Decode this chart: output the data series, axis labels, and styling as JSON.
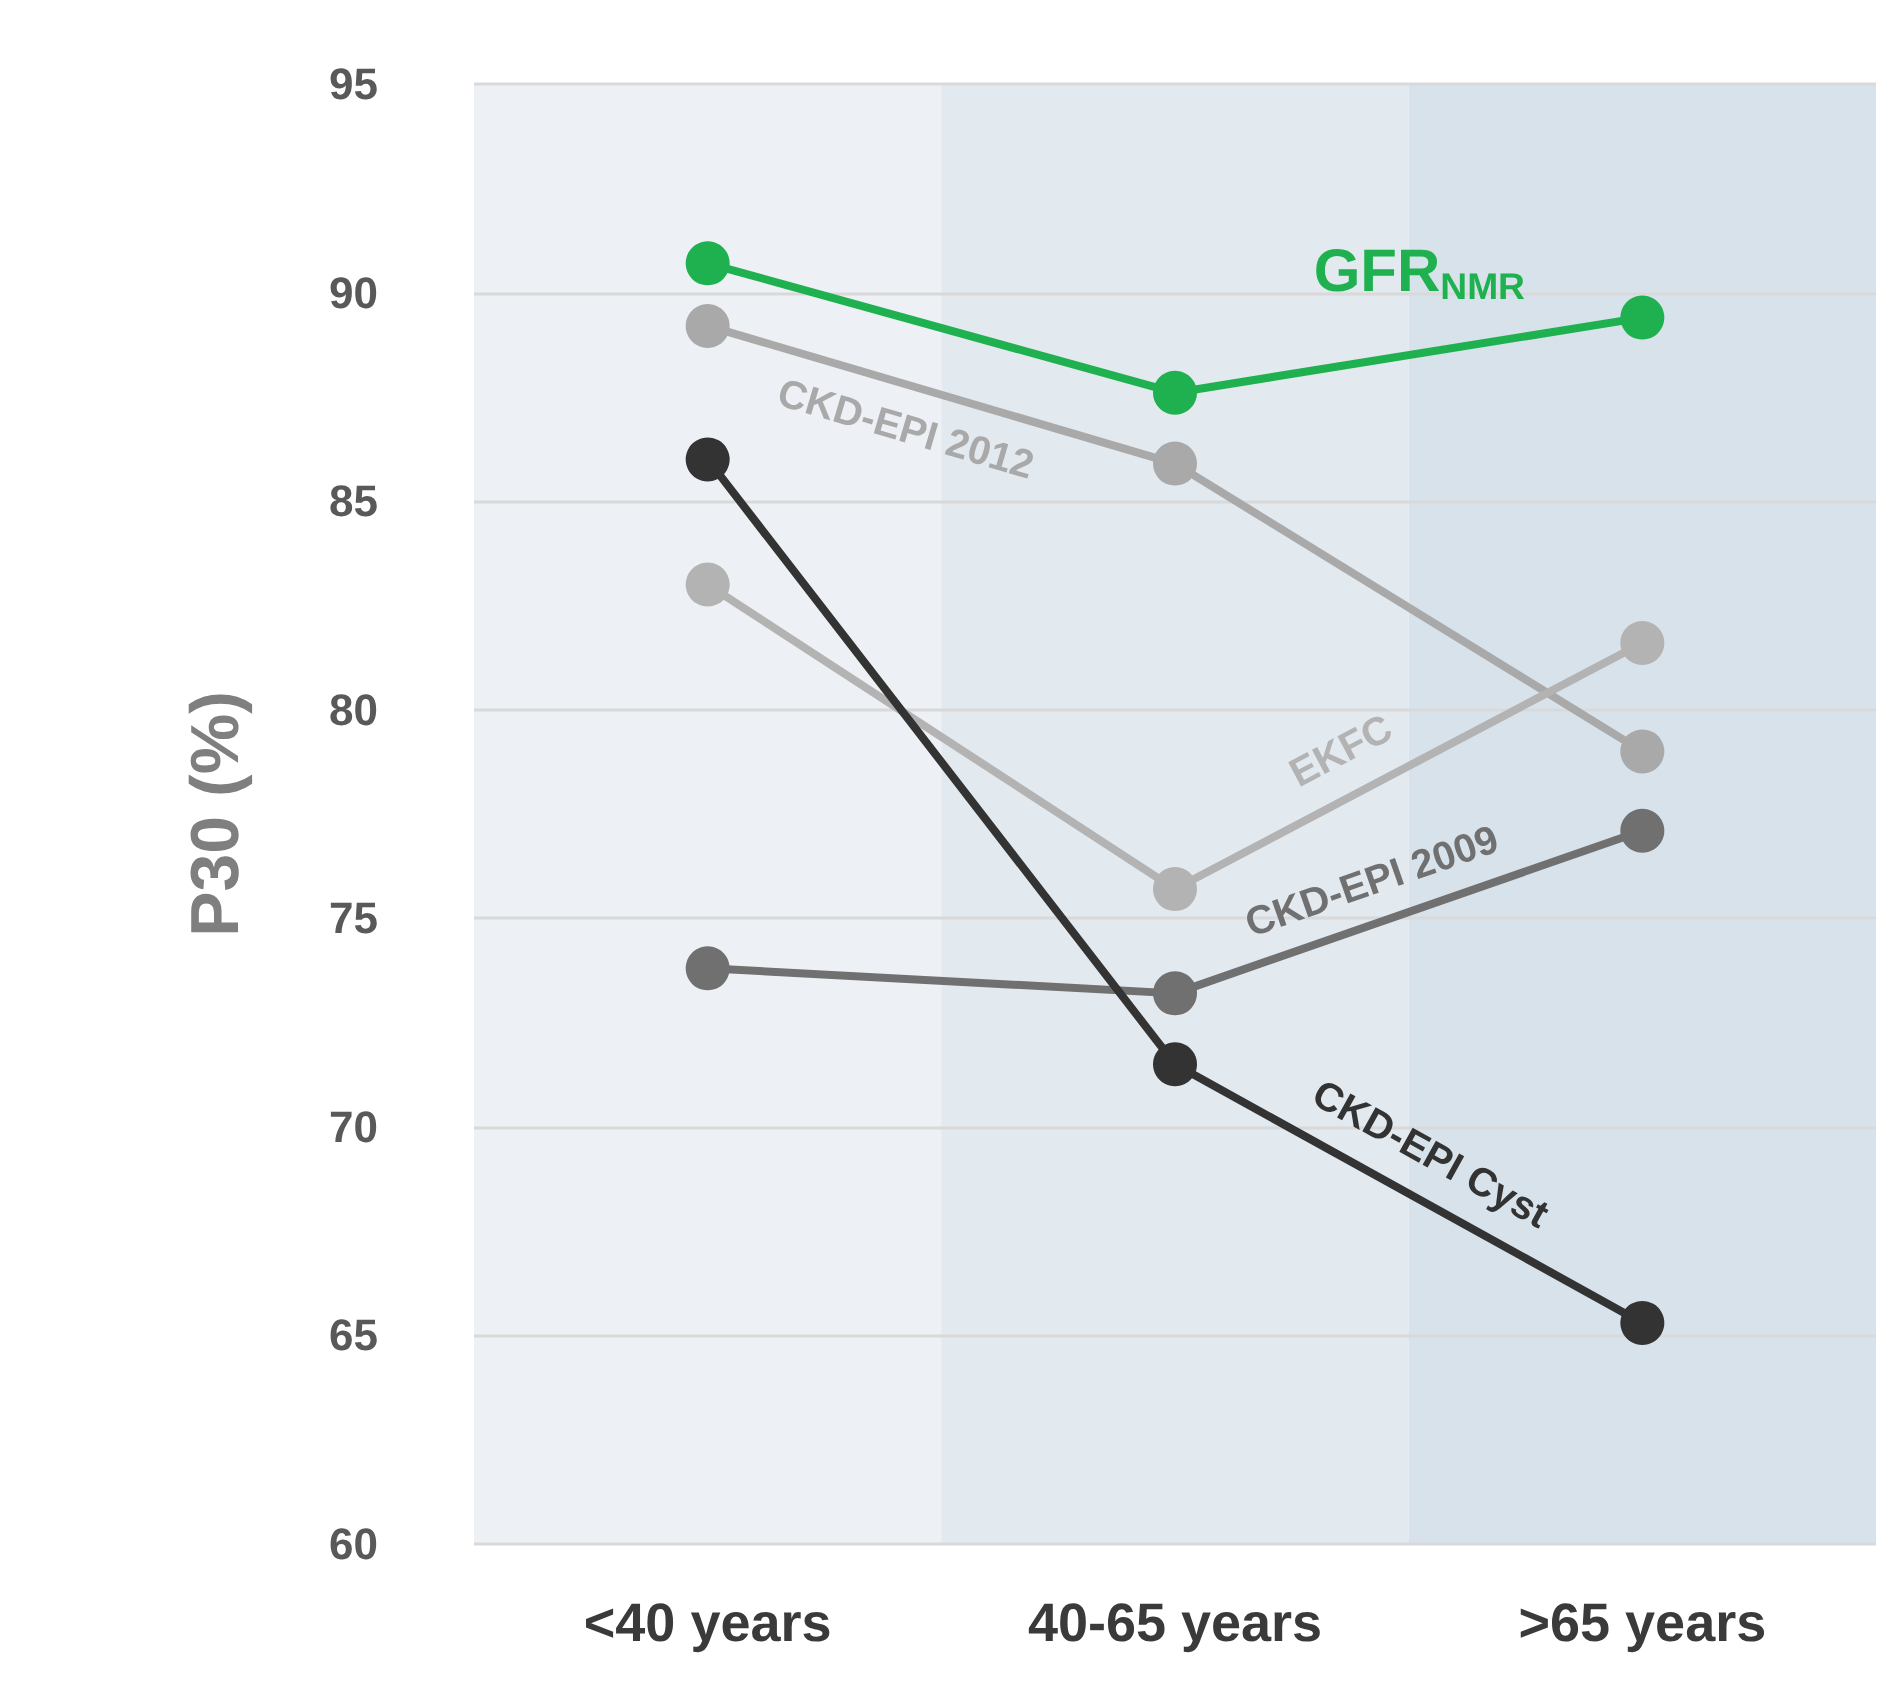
{
  "chart_data": {
    "type": "line",
    "ylabel": "P30 (%)",
    "categories": [
      "<40 years",
      "40-65 years",
      ">65 years"
    ],
    "series": [
      {
        "name": "GFR$_{NMR}$",
        "color": "#1fb14f",
        "values": [
          90.7,
          87.6,
          89.4
        ]
      },
      {
        "name": "CKD-EPI 2012",
        "color": "#a9a9a9",
        "values": [
          89.2,
          85.9,
          79.0
        ]
      },
      {
        "name": "EKFC",
        "color": "#b3b3b3",
        "values": [
          83.0,
          75.7,
          81.6
        ]
      },
      {
        "name": "CKD-EPI 2009",
        "color": "#707070",
        "values": [
          73.8,
          73.2,
          77.1
        ]
      },
      {
        "name": "CKD-EPI Cyst",
        "color": "#333333",
        "values": [
          86.0,
          71.5,
          65.3
        ]
      }
    ],
    "ylim": [
      60,
      95
    ],
    "yticks": [
      60,
      65,
      70,
      75,
      80,
      85,
      90,
      95
    ],
    "grid": "y",
    "marker": "circle",
    "line_style": "solid",
    "legend": false,
    "bands": [
      {
        "axis": "x",
        "from": "<40 years",
        "to": "<40 years",
        "color": "#edf1f5"
      },
      {
        "axis": "x",
        "from": "40-65 years",
        "to": "40-65 years",
        "color": "#e2e9ef"
      },
      {
        "axis": "x",
        "from": ">65 years",
        "to": ">65 years",
        "color": "#d8e2ea"
      }
    ]
  }
}
